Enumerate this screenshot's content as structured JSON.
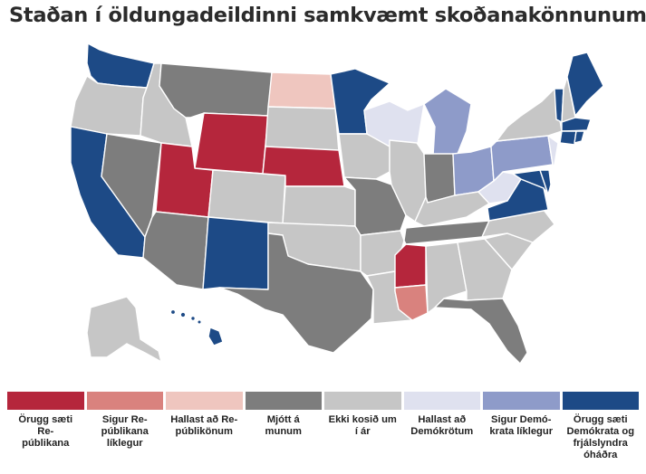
{
  "title": "Staðan í öldungadeildinni samkvæmt skoðanakönnunum",
  "colors": {
    "safe_rep": "#b5263c",
    "likely_rep": "#d9827e",
    "lean_rep": "#efc6bf",
    "tossup": "#7d7d7d",
    "no_race": "#c6c6c6",
    "lean_dem": "#dfe1ef",
    "likely_dem": "#8e9bc9",
    "safe_dem": "#1d4a86"
  },
  "legend": [
    {
      "key": "safe_rep",
      "label": "Örugg sæti Re-\npúblikana"
    },
    {
      "key": "likely_rep",
      "label": "Sigur Re-\npúblikana\nlíklegur"
    },
    {
      "key": "lean_rep",
      "label": "Hallast að Re-\npúblikönum"
    },
    {
      "key": "tossup",
      "label": "Mjótt á\nmunum"
    },
    {
      "key": "no_race",
      "label": "Ekki kosið um\ní ár"
    },
    {
      "key": "lean_dem",
      "label": "Hallast að\nDemókrötum"
    },
    {
      "key": "likely_dem",
      "label": "Sigur Demó-\nkrata líklegur"
    },
    {
      "key": "safe_dem",
      "label": "Örugg sæti\nDemókrata og\nfrjálslyndra\nóháðra"
    }
  ],
  "states": {
    "WA": "safe_dem",
    "OR": "no_race",
    "CA": "safe_dem",
    "NV": "tossup",
    "ID": "no_race",
    "MT": "tossup",
    "WY": "safe_rep",
    "UT": "safe_rep",
    "AZ": "tossup",
    "CO": "no_race",
    "NM": "safe_dem",
    "ND": "lean_rep",
    "SD": "no_race",
    "NE": "safe_rep",
    "KS": "no_race",
    "OK": "no_race",
    "TX": "tossup",
    "MN": "safe_dem",
    "IA": "no_race",
    "MO": "tossup",
    "AR": "no_race",
    "LA": "no_race",
    "WI": "lean_dem",
    "IL": "no_race",
    "MI": "likely_dem",
    "IN": "tossup",
    "OH": "likely_dem",
    "KY": "no_race",
    "TN": "tossup",
    "MS": "safe_rep",
    "MS_S": "likely_rep",
    "AL": "no_race",
    "GA": "no_race",
    "FL": "tossup",
    "SC": "no_race",
    "NC": "no_race",
    "VA": "safe_dem",
    "WV": "lean_dem",
    "MD": "safe_dem",
    "DE": "safe_dem",
    "PA": "likely_dem",
    "NJ": "lean_dem",
    "NY": "no_race",
    "CT": "safe_dem",
    "RI": "safe_dem",
    "MA": "safe_dem",
    "VT": "safe_dem",
    "NH": "no_race",
    "ME": "safe_dem",
    "AK": "no_race",
    "HI": "safe_dem"
  }
}
